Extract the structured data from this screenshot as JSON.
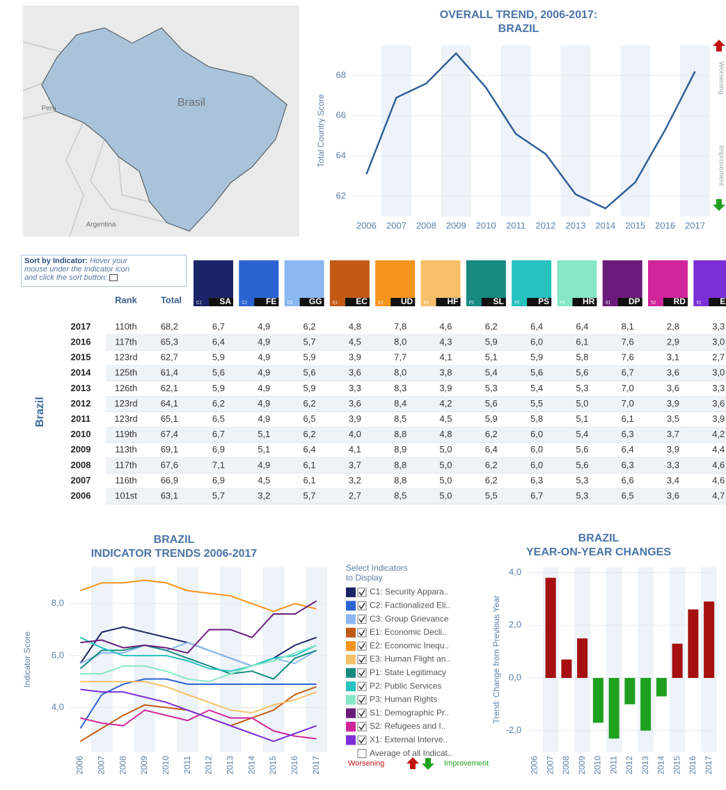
{
  "map": {
    "labels": [
      "Brasil",
      "Peru",
      "Argentina"
    ]
  },
  "table": {
    "sort_title": "Sort by Indicator:",
    "sort_hint": [
      "Hover your",
      "mouse under the Indicator icon",
      "and click the sort button:"
    ],
    "headers": [
      "Rank",
      "Total"
    ],
    "row_group": "Brazil",
    "indicators": [
      {
        "id": "C1",
        "code": "SA",
        "color": "#1b2466"
      },
      {
        "id": "C2",
        "code": "FE",
        "color": "#2c63d3"
      },
      {
        "id": "C3",
        "code": "GG",
        "color": "#8bb8f0"
      },
      {
        "id": "E1",
        "code": "EC",
        "color": "#c25a16"
      },
      {
        "id": "E2",
        "code": "UD",
        "color": "#f5931d"
      },
      {
        "id": "E3",
        "code": "HF",
        "color": "#f6c068"
      },
      {
        "id": "P1",
        "code": "SL",
        "color": "#168a80"
      },
      {
        "id": "P2",
        "code": "PS",
        "color": "#26c2c0"
      },
      {
        "id": "P3",
        "code": "HR",
        "color": "#86e8c4"
      },
      {
        "id": "S1",
        "code": "DP",
        "color": "#6a1c7a"
      },
      {
        "id": "S2",
        "code": "RD",
        "color": "#d1259b"
      },
      {
        "id": "X1",
        "code": "EX",
        "color": "#7a2fd8"
      }
    ],
    "rows": [
      [
        "2017",
        "110th",
        "68,2",
        "6,7",
        "4,9",
        "6,2",
        "4,8",
        "7,8",
        "4,6",
        "6,2",
        "6,4",
        "6,4",
        "8,1",
        "2,8",
        "3,3"
      ],
      [
        "2016",
        "117th",
        "65,3",
        "6,4",
        "4,9",
        "5,7",
        "4,5",
        "8,0",
        "4,3",
        "5,9",
        "6,0",
        "6,1",
        "7,6",
        "2,9",
        "3,0"
      ],
      [
        "2015",
        "123rd",
        "62,7",
        "5,9",
        "4,9",
        "5,9",
        "3,9",
        "7,7",
        "4,1",
        "5,1",
        "5,9",
        "5,8",
        "7,6",
        "3,1",
        "2,7"
      ],
      [
        "2014",
        "125th",
        "61,4",
        "5,6",
        "4,9",
        "5,6",
        "3,6",
        "8,0",
        "3,8",
        "5,4",
        "5,6",
        "5,6",
        "6,7",
        "3,6",
        "3,0"
      ],
      [
        "2013",
        "126th",
        "62,1",
        "5,9",
        "4,9",
        "5,9",
        "3,3",
        "8,3",
        "3,9",
        "5,3",
        "5,4",
        "5,3",
        "7,0",
        "3,6",
        "3,3"
      ],
      [
        "2012",
        "123rd",
        "64,1",
        "6,2",
        "4,9",
        "6,2",
        "3,6",
        "8,4",
        "4,2",
        "5,6",
        "5,5",
        "5,0",
        "7,0",
        "3,9",
        "3,6"
      ],
      [
        "2011",
        "123rd",
        "65,1",
        "6,5",
        "4,9",
        "6,5",
        "3,9",
        "8,5",
        "4,5",
        "5,9",
        "5,8",
        "5,1",
        "6,1",
        "3,5",
        "3,9"
      ],
      [
        "2010",
        "119th",
        "67,4",
        "6,7",
        "5,1",
        "6,2",
        "4,0",
        "8,8",
        "4,8",
        "6,2",
        "6,0",
        "5,4",
        "6,3",
        "3,7",
        "4,2"
      ],
      [
        "2009",
        "113th",
        "69,1",
        "6,9",
        "5,1",
        "6,4",
        "4,1",
        "8,9",
        "5,0",
        "6,4",
        "6,0",
        "5,6",
        "6,4",
        "3,9",
        "4,4"
      ],
      [
        "2008",
        "117th",
        "67,6",
        "7,1",
        "4,9",
        "6,1",
        "3,7",
        "8,8",
        "5,0",
        "6,2",
        "6,0",
        "5,6",
        "6,3",
        "3,3",
        "4,6"
      ],
      [
        "2007",
        "116th",
        "66,9",
        "6,9",
        "4,5",
        "6,1",
        "3,2",
        "8,8",
        "5,0",
        "6,2",
        "6,3",
        "5,3",
        "6,6",
        "3,4",
        "4,6"
      ],
      [
        "2006",
        "101st",
        "63,1",
        "5,7",
        "3,2",
        "5,7",
        "2,7",
        "8,5",
        "5,0",
        "5,5",
        "6,7",
        "5,3",
        "6,5",
        "3,6",
        "4,7"
      ]
    ]
  },
  "chart_data": [
    {
      "type": "line",
      "title": [
        "OVERALL TREND, 2006-2017:",
        "BRAZIL"
      ],
      "ylabel": "Total Country Score",
      "categories": [
        "2006",
        "2007",
        "2008",
        "2009",
        "2010",
        "2011",
        "2012",
        "2013",
        "2014",
        "2015",
        "2016",
        "2017"
      ],
      "values": [
        63.1,
        66.9,
        67.6,
        69.1,
        67.4,
        65.1,
        64.1,
        62.1,
        61.4,
        62.7,
        65.3,
        68.2
      ],
      "color": "#2f5f98",
      "ylim": [
        61,
        69.5
      ],
      "yticks": [
        62,
        64,
        66,
        68
      ],
      "annotations": [
        "Worsening",
        "Improvement"
      ]
    },
    {
      "type": "line",
      "title": [
        "BRAZIL",
        "INDICATOR TRENDS 2006-2017"
      ],
      "ylabel": "Indicator Score",
      "categories": [
        "2006",
        "2007",
        "2008",
        "2009",
        "2010",
        "2011",
        "2012",
        "2013",
        "2014",
        "2015",
        "2016",
        "2017"
      ],
      "ylim": [
        2.3,
        9.4
      ],
      "yticks": [
        {
          "value": 4,
          "label": "4,0"
        },
        {
          "value": 6,
          "label": "6,0"
        },
        {
          "value": 8,
          "label": "8,0"
        }
      ],
      "legend_title": [
        "Select Indicators",
        "to Display"
      ],
      "legend_extra": "Average of all Indicat..",
      "annotations": [
        "Worsening",
        "Improvement"
      ],
      "series": [
        {
          "name": "C1: Security Appara..",
          "color": "#1b2466",
          "values": [
            5.7,
            6.9,
            7.1,
            6.9,
            6.7,
            6.5,
            6.2,
            5.9,
            5.6,
            5.9,
            6.4,
            6.7
          ]
        },
        {
          "name": "C2: Factionalized Eli..",
          "color": "#2c63d3",
          "values": [
            3.2,
            4.5,
            4.9,
            5.1,
            5.1,
            4.9,
            4.9,
            4.9,
            4.9,
            4.9,
            4.9,
            4.9
          ]
        },
        {
          "name": "C3: Group Grievance",
          "color": "#8bb8f0",
          "values": [
            5.7,
            6.1,
            6.1,
            6.4,
            6.2,
            6.5,
            6.2,
            5.9,
            5.6,
            5.9,
            5.7,
            6.2
          ]
        },
        {
          "name": "E1: Economic Decli..",
          "color": "#c25a16",
          "values": [
            2.7,
            3.2,
            3.7,
            4.1,
            4.0,
            3.9,
            3.6,
            3.3,
            3.6,
            3.9,
            4.5,
            4.8
          ]
        },
        {
          "name": "E2: Economic Inequ..",
          "color": "#f5931d",
          "values": [
            8.5,
            8.8,
            8.8,
            8.9,
            8.8,
            8.5,
            8.4,
            8.3,
            8.0,
            7.7,
            8.0,
            7.8
          ]
        },
        {
          "name": "E3: Human Flight an..",
          "color": "#f6c068",
          "values": [
            5.0,
            5.0,
            5.0,
            5.0,
            4.8,
            4.5,
            4.2,
            3.9,
            3.8,
            4.1,
            4.3,
            4.6
          ]
        },
        {
          "name": "P1: State Legitimacy",
          "color": "#168a80",
          "values": [
            5.5,
            6.2,
            6.2,
            6.4,
            6.2,
            5.9,
            5.6,
            5.3,
            5.4,
            5.1,
            5.9,
            6.2
          ]
        },
        {
          "name": "P2: Public Services",
          "color": "#26c2c0",
          "values": [
            6.7,
            6.3,
            6.0,
            6.0,
            6.0,
            5.8,
            5.5,
            5.4,
            5.6,
            5.9,
            6.0,
            6.4
          ]
        },
        {
          "name": "P3: Human Rights",
          "color": "#86e8c4",
          "values": [
            5.3,
            5.3,
            5.6,
            5.6,
            5.4,
            5.1,
            5.0,
            5.3,
            5.6,
            5.8,
            6.1,
            6.4
          ]
        },
        {
          "name": "S1: Demographic Pr..",
          "color": "#6a1c7a",
          "values": [
            6.5,
            6.6,
            6.3,
            6.4,
            6.3,
            6.1,
            7.0,
            7.0,
            6.7,
            7.6,
            7.6,
            8.1
          ]
        },
        {
          "name": "S2: Refugees and I..",
          "color": "#d1259b",
          "values": [
            3.6,
            3.4,
            3.3,
            3.9,
            3.7,
            3.5,
            3.9,
            3.6,
            3.6,
            3.1,
            2.9,
            2.8
          ]
        },
        {
          "name": "X1: External Interve..",
          "color": "#7a2fd8",
          "values": [
            4.7,
            4.6,
            4.6,
            4.4,
            4.2,
            3.9,
            3.6,
            3.3,
            3.0,
            2.7,
            3.0,
            3.3
          ]
        }
      ]
    },
    {
      "type": "bar",
      "title": [
        "BRAZIL",
        "YEAR-ON-YEAR CHANGES"
      ],
      "ylabel": "Trend: Change from Previous Year",
      "categories": [
        "2006",
        "2007",
        "2008",
        "2009",
        "2010",
        "2011",
        "2012",
        "2013",
        "2014",
        "2015",
        "2016",
        "2017"
      ],
      "values": [
        null,
        3.8,
        0.7,
        1.5,
        -1.7,
        -2.3,
        -1.0,
        -2.0,
        -0.7,
        1.3,
        2.6,
        2.9
      ],
      "positive_color": "#a50f0f",
      "negative_color": "#1fa01f",
      "ylim": [
        -2.8,
        4.2
      ],
      "yticks": [
        {
          "value": -2,
          "label": "-2,0"
        },
        {
          "value": 0,
          "label": "0,0"
        },
        {
          "value": 2,
          "label": "2,0"
        },
        {
          "value": 4,
          "label": "4,0"
        }
      ]
    }
  ]
}
